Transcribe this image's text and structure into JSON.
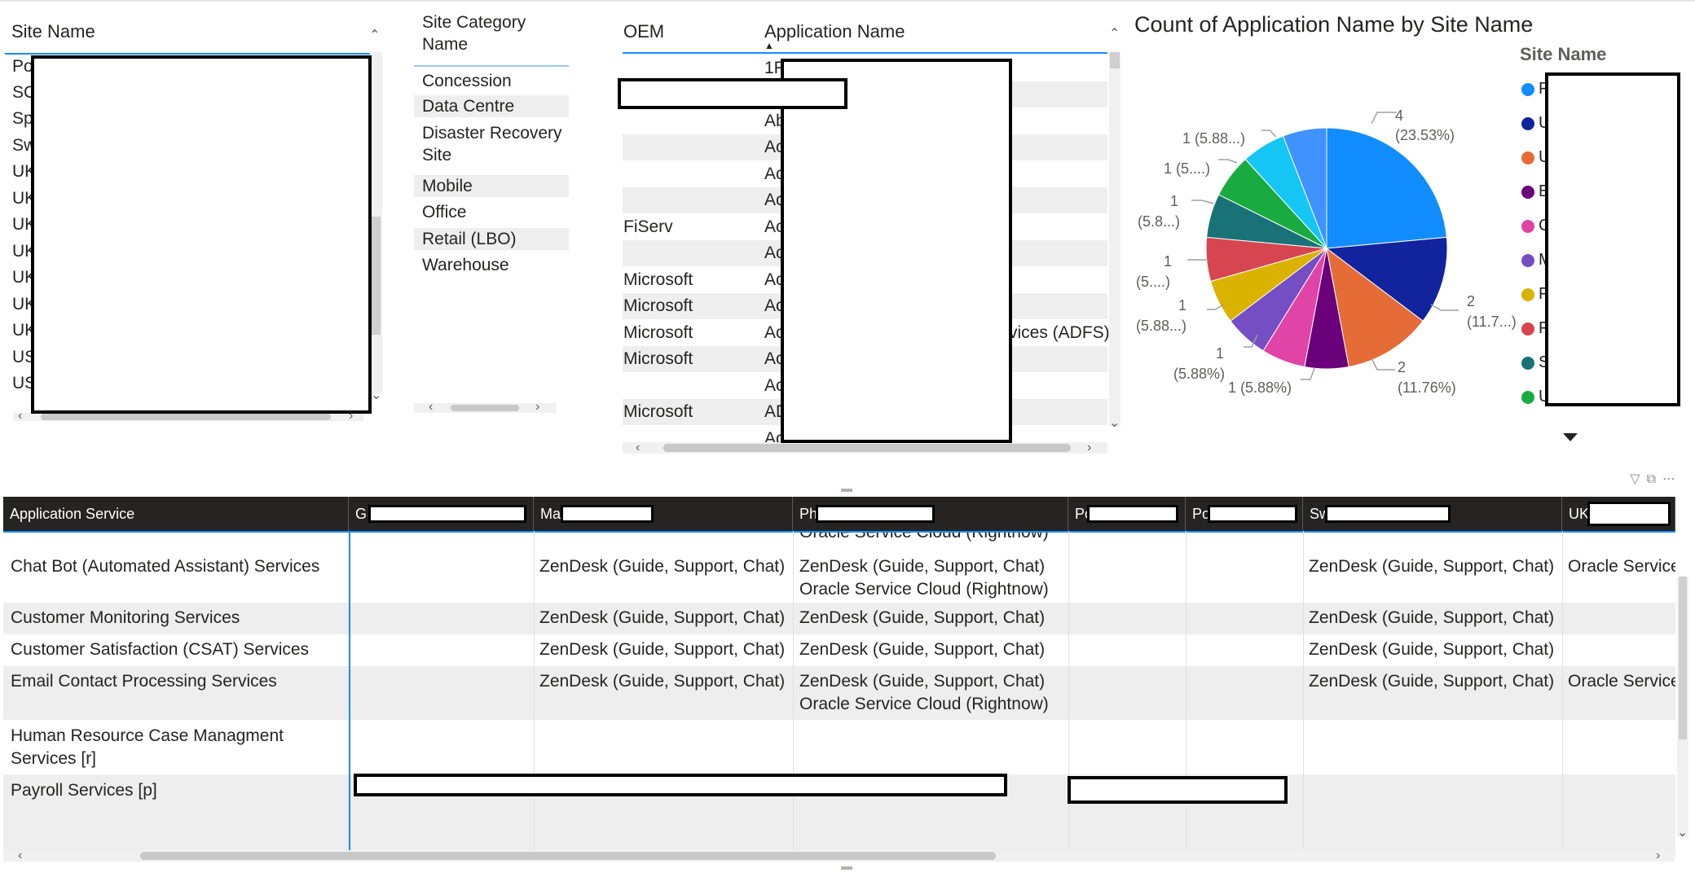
{
  "slicer_site": {
    "header": "Site Name",
    "rows": [
      "Po",
      "SC",
      "Sp",
      "Sw",
      "UK",
      "UK",
      "UK",
      "UK",
      "UK",
      "UK",
      "UK",
      "US",
      "US"
    ]
  },
  "slicer_category": {
    "header": "Site Category Name",
    "items": [
      "Concession",
      "Data Centre",
      "Disaster Recovery Site",
      "Mobile",
      "Office",
      "Retail (LBO)",
      "Warehouse"
    ]
  },
  "app_table": {
    "col_oem": "OEM",
    "col_app": "Application Name",
    "rows": [
      {
        "oem": "",
        "app": "1F"
      },
      {
        "oem": "",
        "app": ""
      },
      {
        "oem": "",
        "app": "Ab"
      },
      {
        "oem": "",
        "app": "Ac"
      },
      {
        "oem": "",
        "app": "Ac"
      },
      {
        "oem": "",
        "app": "Ac"
      },
      {
        "oem": "FiServ",
        "app": "Ac"
      },
      {
        "oem": "",
        "app": "Ac"
      },
      {
        "oem": "Microsoft",
        "app": "Ac"
      },
      {
        "oem": "Microsoft",
        "app": "Ac"
      },
      {
        "oem": "Microsoft",
        "app": "Ac"
      },
      {
        "oem": "Microsoft",
        "app": "Ac"
      },
      {
        "oem": "",
        "app": "Ac"
      },
      {
        "oem": "Microsoft",
        "app": "AD"
      },
      {
        "oem": "",
        "app": "Ac"
      }
    ],
    "adfs_fragment": "vices (ADFS)"
  },
  "pie": {
    "title": "Count of Application Name by Site Name",
    "legend_title": "Site Name",
    "legend_letters": [
      "F",
      "U",
      "U",
      "E",
      "C",
      "M",
      "F",
      "F",
      "S",
      "U"
    ],
    "labels": {
      "l4": "4",
      "l4p": "(23.53%)",
      "l2a": "2",
      "l2ap": "(11.7...)",
      "l2b": "2",
      "l2bp": "(11.76%)",
      "l1a": "1 (5.88%)",
      "l1b": "1",
      "l1bp": "(5.88%)",
      "l1c": "1",
      "l1cp": "(5.88...)",
      "l1d": "1",
      "l1dp": "(5....)",
      "l1e": "1",
      "l1ep": "(5.8...)",
      "l1f": "1 (5....)",
      "l1g": "1 (5.88...)"
    }
  },
  "chart_data": {
    "type": "pie",
    "title": "Count of Application Name by Site Name",
    "legend_title": "Site Name",
    "slices": [
      {
        "value": 4,
        "label": "(23.53%)",
        "color": "#118dff"
      },
      {
        "value": 2,
        "label": "(11.7...)",
        "color": "#12239e"
      },
      {
        "value": 2,
        "label": "(11.76%)",
        "color": "#e66c37"
      },
      {
        "value": 1,
        "label": "(5.88%)",
        "color": "#6b007b"
      },
      {
        "value": 1,
        "label": "(5.88%)",
        "color": "#e044a7"
      },
      {
        "value": 1,
        "label": "(5.88%)",
        "color": "#744ec2"
      },
      {
        "value": 1,
        "label": "(5.88...)",
        "color": "#d9b300"
      },
      {
        "value": 1,
        "label": "(5....)",
        "color": "#d64550"
      },
      {
        "value": 1,
        "label": "(5.8...)",
        "color": "#197278"
      },
      {
        "value": 1,
        "label": "(5....)",
        "color": "#1aab40"
      },
      {
        "value": 1,
        "label": "(5.88...)",
        "color": "#15c6f4"
      },
      {
        "value": 1,
        "label": "",
        "color": "#4092ff"
      }
    ]
  },
  "matrix": {
    "headers": [
      "Application Service",
      "G",
      "Ma",
      "Ph",
      "Pc",
      "Po",
      "Sw",
      "UK"
    ],
    "cut_top_text": "Oracle Service Cloud (Rightnow)",
    "rows": [
      {
        "label": "Chat Bot (Automated Assistant) Services",
        "ma": "ZenDesk (Guide, Support, Chat)",
        "ph": "ZenDesk (Guide, Support, Chat)",
        "ph2": "Oracle Service Cloud (Rightnow)",
        "sw": "ZenDesk (Guide, Support, Chat)",
        "uk": "Oracle Service"
      },
      {
        "label": "Customer Monitoring Services",
        "ma": "ZenDesk (Guide, Support, Chat)",
        "ph": "ZenDesk (Guide, Support, Chat)",
        "sw": "ZenDesk (Guide, Support, Chat)"
      },
      {
        "label": "Customer Satisfaction (CSAT) Services",
        "ma": "ZenDesk (Guide, Support, Chat)",
        "ph": "ZenDesk (Guide, Support, Chat)",
        "sw": "ZenDesk (Guide, Support, Chat)"
      },
      {
        "label": "Email Contact Processing Services",
        "ma": "ZenDesk (Guide, Support, Chat)",
        "ph": "ZenDesk (Guide, Support, Chat)",
        "ph2": "Oracle Service Cloud (Rightnow)",
        "sw": "ZenDesk (Guide, Support, Chat)",
        "uk": "Oracle Service"
      },
      {
        "label": "Human Resource Case Managment Services [r]"
      },
      {
        "label": "Payroll Services [p]"
      }
    ]
  },
  "icons": {
    "filter": "filter-icon",
    "focus": "focus-mode-icon",
    "more": "more-options-icon"
  }
}
